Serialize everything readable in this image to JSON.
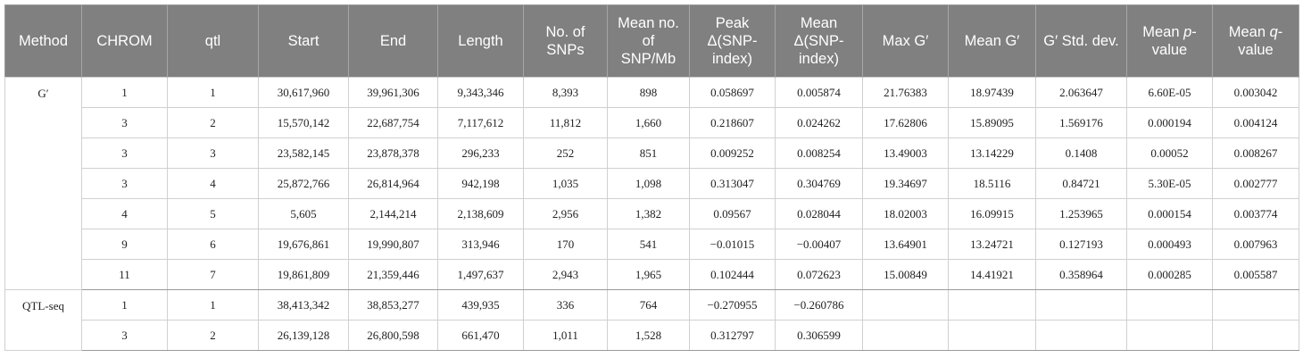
{
  "table": {
    "header": [
      "Method",
      "CHROM",
      "qtl",
      "Start",
      "End",
      "Length",
      "No. of SNPs",
      "Mean no. of SNP/Mb",
      "Peak Δ(SNP-index)",
      "Mean Δ(SNP-index)",
      "Max G′",
      "Mean G′",
      "G′ Std. dev.",
      [
        "Mean ",
        "p",
        "-value"
      ],
      [
        "Mean ",
        "q",
        "-value"
      ]
    ],
    "groups": [
      {
        "method": "G′",
        "rows": [
          [
            "1",
            "1",
            "30,617,960",
            "39,961,306",
            "9,343,346",
            "8,393",
            "898",
            "0.058697",
            "0.005874",
            "21.76383",
            "18.97439",
            "2.063647",
            "6.60E-05",
            "0.003042"
          ],
          [
            "3",
            "2",
            "15,570,142",
            "22,687,754",
            "7,117,612",
            "11,812",
            "1,660",
            "0.218607",
            "0.024262",
            "17.62806",
            "15.89095",
            "1.569176",
            "0.000194",
            "0.004124"
          ],
          [
            "3",
            "3",
            "23,582,145",
            "23,878,378",
            "296,233",
            "252",
            "851",
            "0.009252",
            "0.008254",
            "13.49003",
            "13.14229",
            "0.1408",
            "0.00052",
            "0.008267"
          ],
          [
            "3",
            "4",
            "25,872,766",
            "26,814,964",
            "942,198",
            "1,035",
            "1,098",
            "0.313047",
            "0.304769",
            "19.34697",
            "18.5116",
            "0.84721",
            "5.30E-05",
            "0.002777"
          ],
          [
            "4",
            "5",
            "5,605",
            "2,144,214",
            "2,138,609",
            "2,956",
            "1,382",
            "0.09567",
            "0.028044",
            "18.02003",
            "16.09915",
            "1.253965",
            "0.000154",
            "0.003774"
          ],
          [
            "9",
            "6",
            "19,676,861",
            "19,990,807",
            "313,946",
            "170",
            "541",
            "−0.01015",
            "−0.00407",
            "13.64901",
            "13.24721",
            "0.127193",
            "0.000493",
            "0.007963"
          ],
          [
            "11",
            "7",
            "19,861,809",
            "21,359,446",
            "1,497,637",
            "2,943",
            "1,965",
            "0.102444",
            "0.072623",
            "15.00849",
            "14.41921",
            "0.358964",
            "0.000285",
            "0.005587"
          ]
        ]
      },
      {
        "method": "QTL-seq",
        "rows": [
          [
            "1",
            "1",
            "38,413,342",
            "38,853,277",
            "439,935",
            "336",
            "764",
            "−0.270955",
            "−0.260786"
          ],
          [
            "3",
            "2",
            "26,139,128",
            "26,800,598",
            "661,470",
            "1,011",
            "1,528",
            "0.312797",
            "0.306599"
          ]
        ]
      }
    ]
  }
}
